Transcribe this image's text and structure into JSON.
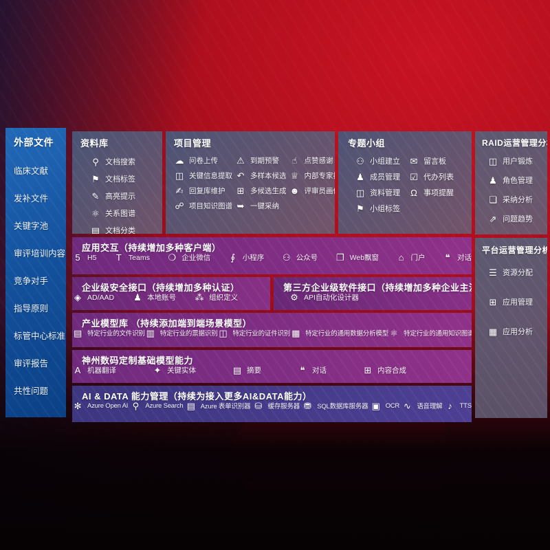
{
  "colors": {
    "background_red": "#b20f1e",
    "sidebar_blue": "#14529e",
    "panel_slate": "#5a6078",
    "row_purple": "#7d2e85",
    "row_indigo": "#463c8a"
  },
  "left_sidebar": {
    "title": "外部文件",
    "items": [
      "临床文献",
      "发补文件",
      "关键字池",
      "审评培训内容",
      "竞争对手",
      "指导原则",
      "标管中心标准",
      "审评报告",
      "共性问题"
    ]
  },
  "repository": {
    "title": "资料库",
    "items": [
      {
        "name": "doc-search",
        "icon": "⚲",
        "label": "文档搜索"
      },
      {
        "name": "doc-tag",
        "icon": "⚑",
        "label": "文档标签"
      },
      {
        "name": "highlight-tip",
        "icon": "✎",
        "label": "高亮提示"
      },
      {
        "name": "relation-graph",
        "icon": "⚛",
        "label": "关系图谱"
      },
      {
        "name": "doc-classify",
        "icon": "▤",
        "label": "文档分类"
      }
    ]
  },
  "project_management": {
    "title": "项目管理",
    "items": [
      {
        "name": "questionnaire-upload",
        "icon": "☁",
        "label": "问卷上传"
      },
      {
        "name": "key-info-extraction",
        "icon": "◫",
        "label": "关键信息提取"
      },
      {
        "name": "reply-library-maintenance",
        "icon": "✍",
        "label": "回复库维护"
      },
      {
        "name": "project-knowledge-graph",
        "icon": "☍",
        "label": "项目知识图谱"
      },
      {
        "name": "expiry-warning",
        "icon": "⚠",
        "label": "到期预警"
      },
      {
        "name": "multi-sample-candidate",
        "icon": "↶",
        "label": "多样本候选"
      },
      {
        "name": "multi-candidate-generation",
        "icon": "⊞",
        "label": "多候选生成"
      },
      {
        "name": "one-click-adoption",
        "icon": "➥",
        "label": "一键采纳"
      },
      {
        "name": "like-thanks",
        "icon": "☝",
        "label": "点赞感谢"
      },
      {
        "name": "internal-expert-ranking",
        "icon": "♕",
        "label": "内部专家排名"
      },
      {
        "name": "reviewer-portrait",
        "icon": "☻",
        "label": "评审员画像"
      }
    ]
  },
  "special_groups": {
    "title": "专题小组",
    "items": [
      {
        "name": "group-creation",
        "icon": "⚇",
        "label": "小组建立"
      },
      {
        "name": "member-management",
        "icon": "♟",
        "label": "成员管理"
      },
      {
        "name": "material-management",
        "icon": "◫",
        "label": "资料管理"
      },
      {
        "name": "group-tag",
        "icon": "⚑",
        "label": "小组标签"
      },
      {
        "name": "message-board",
        "icon": "✉",
        "label": "留言板"
      },
      {
        "name": "todo-list",
        "icon": "☑",
        "label": "代办列表"
      },
      {
        "name": "item-reminder",
        "icon": "Ω",
        "label": "事项提醒"
      }
    ]
  },
  "raid_panel": {
    "title": "RAID运营管理分析",
    "items": [
      {
        "name": "user-training",
        "icon": "◫",
        "label": "用户锻炼"
      },
      {
        "name": "role-management",
        "icon": "♟",
        "label": "角色管理"
      },
      {
        "name": "adoption-analysis",
        "icon": "❏",
        "label": "采纳分析"
      },
      {
        "name": "issue-trend",
        "icon": "⇗",
        "label": "问题趋势"
      }
    ]
  },
  "platform_panel": {
    "title": "平台运营管理分析",
    "items": [
      {
        "name": "resource-allocation",
        "icon": "☰",
        "label": "资源分配"
      },
      {
        "name": "app-management",
        "icon": "⊞",
        "label": "应用管理"
      },
      {
        "name": "app-analysis",
        "icon": "▦",
        "label": "应用分析"
      }
    ]
  },
  "app_interaction": {
    "title": "应用交互（持续增加多种客户端）",
    "items": [
      {
        "name": "h5",
        "icon": "5",
        "label": "H5"
      },
      {
        "name": "teams",
        "icon": "T",
        "label": "Teams"
      },
      {
        "name": "wecom",
        "icon": "❍",
        "label": "企业微信"
      },
      {
        "name": "mini-program",
        "icon": "∮",
        "label": "小程序"
      },
      {
        "name": "official-account",
        "icon": "⚇",
        "label": "公众号"
      },
      {
        "name": "web-popup",
        "icon": "❐",
        "label": "Web飘窗"
      },
      {
        "name": "portal",
        "icon": "⌂",
        "label": "门户"
      },
      {
        "name": "dialog",
        "icon": "❝",
        "label": "对话"
      }
    ]
  },
  "security_interface": {
    "title": "企业级安全接口（持续增加多种认证）",
    "items": [
      {
        "name": "ad-aad",
        "icon": "◈",
        "label": "AD/AAD"
      },
      {
        "name": "local-account",
        "icon": "♟",
        "label": "本地账号"
      },
      {
        "name": "org-definition",
        "icon": "⁂",
        "label": "组织定义"
      }
    ]
  },
  "third_party_interface": {
    "title": "第三方企业级软件接口（持续增加多种企业主流软件接口）",
    "items": [
      {
        "name": "api-auto-designer",
        "icon": "⚙",
        "label": "API自动化设计器"
      }
    ]
  },
  "industry_model_library": {
    "title": "产业模型库 （持续添加端到端场景模型）",
    "items": [
      {
        "name": "industry-file-recognition",
        "icon": "▤",
        "label": "特定行业的文件识别"
      },
      {
        "name": "industry-receipt-recognition",
        "icon": "▥",
        "label": "特定行业的票据识别"
      },
      {
        "name": "industry-certificate-recognition",
        "icon": "◫",
        "label": "特定行业的证件识别"
      },
      {
        "name": "industry-data-analysis-model",
        "icon": "▦",
        "label": "特定行业的通用数据分析模型"
      },
      {
        "name": "industry-knowledge-graph-model",
        "icon": "⚛",
        "label": "特定行业的通用知识图谱模型"
      }
    ]
  },
  "base_model_capabilities": {
    "title": "神州数码定制基础模型能力",
    "items": [
      {
        "name": "machine-translation",
        "icon": "A",
        "label": "机器翻译"
      },
      {
        "name": "key-entity",
        "icon": "✦",
        "label": "关键实体"
      },
      {
        "name": "summary",
        "icon": "▤",
        "label": "摘要"
      },
      {
        "name": "dialogue",
        "icon": "❝",
        "label": "对话"
      },
      {
        "name": "content-synthesis",
        "icon": "⊞",
        "label": "内容合成"
      }
    ]
  },
  "ai_data_management": {
    "title": "AI & DATA 能力管理（持续为接入更多AI&DATA能力）",
    "items": [
      {
        "name": "azure-openai",
        "icon": "✻",
        "label": "Azure Open AI"
      },
      {
        "name": "azure-search",
        "icon": "⚲",
        "label": "Azure Search"
      },
      {
        "name": "azure-form-recognizer",
        "icon": "▤",
        "label": "Azure 表单识别器"
      },
      {
        "name": "cache-server",
        "icon": "⛁",
        "label": "缓存服务器"
      },
      {
        "name": "sql-database-server",
        "icon": "⛃",
        "label": "SQL数据库服务器"
      },
      {
        "name": "ocr",
        "icon": "▣",
        "label": "OCR"
      },
      {
        "name": "speech-understanding",
        "icon": "∿",
        "label": "语音理解"
      },
      {
        "name": "tts",
        "icon": "♪",
        "label": "TTS"
      }
    ]
  }
}
